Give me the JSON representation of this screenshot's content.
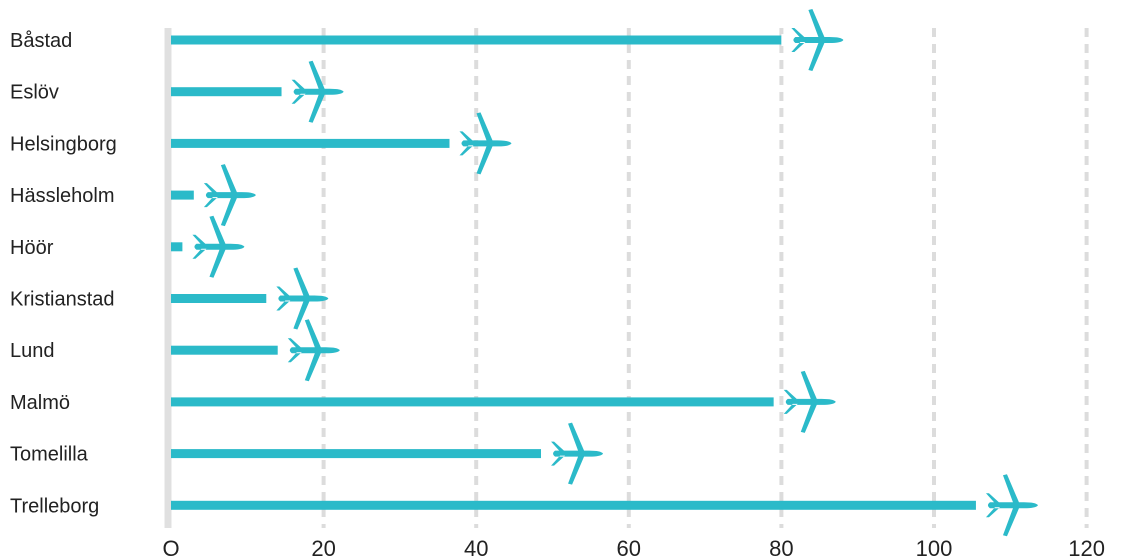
{
  "chart_data": {
    "type": "bar",
    "orientation": "horizontal",
    "title": "",
    "xlabel": "",
    "ylabel": "",
    "categories": [
      "Båstad",
      "Eslöv",
      "Helsingborg",
      "Hässleholm",
      "Höör",
      "Kristianstad",
      "Lund",
      "Malmö",
      "Tomelilla",
      "Trelleborg"
    ],
    "values": [
      80,
      14.5,
      36.5,
      3,
      1.5,
      12.5,
      14,
      79,
      48.5,
      105.5
    ],
    "xlim": [
      0,
      120
    ],
    "x_ticks": [
      0,
      20,
      40,
      60,
      80,
      100,
      120
    ],
    "x_tick_labels": [
      "O",
      "20",
      "40",
      "60",
      "80",
      "100",
      "120"
    ],
    "grid": "vertical dashed",
    "legend": "none",
    "bar_marker_icon": "airplane-icon",
    "colors": {
      "bar": "#2bbac9",
      "grid": "#dcdcdc",
      "axis": "#e0e0e0",
      "text": "#222222"
    }
  }
}
